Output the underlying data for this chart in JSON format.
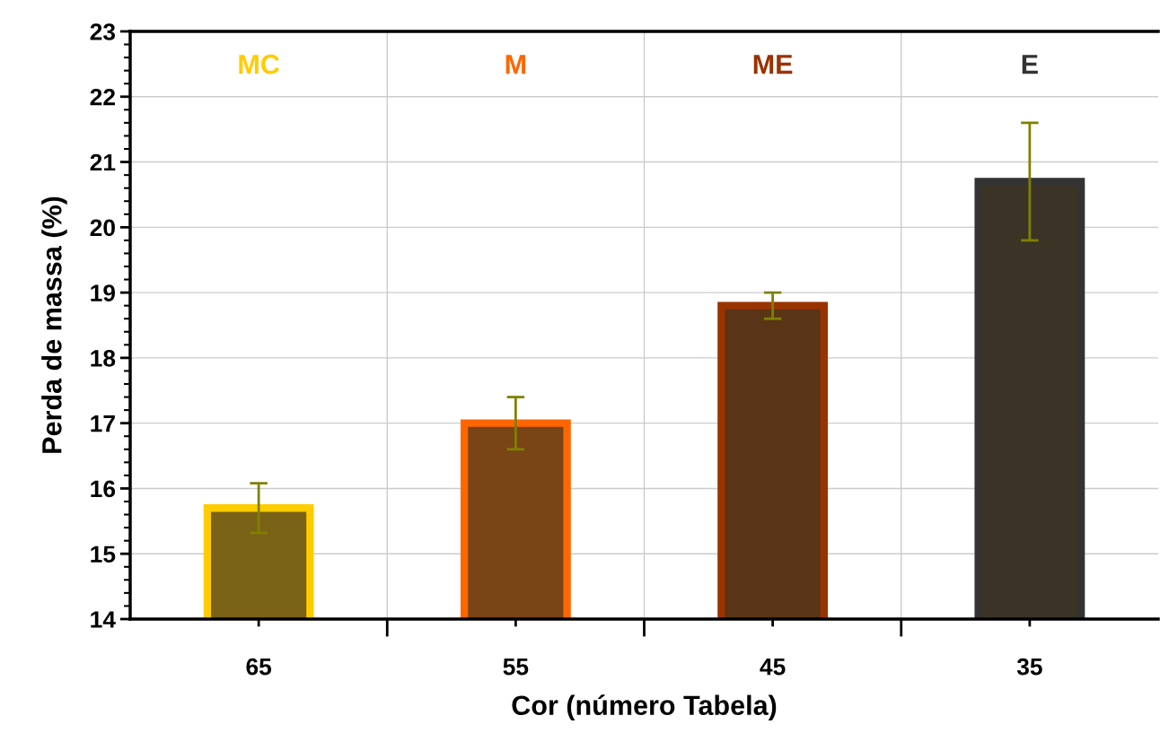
{
  "chart_data": {
    "type": "bar",
    "xlabel": "Cor (número Tabela)",
    "ylabel": "Perda de massa (%)",
    "categories": [
      "65",
      "55",
      "45",
      "35"
    ],
    "values": [
      15.7,
      17.0,
      18.8,
      20.7
    ],
    "errors": [
      0.38,
      0.4,
      0.2,
      0.9
    ],
    "colors": [
      "#ffcc00",
      "#ff6600",
      "#993300",
      "#333333"
    ],
    "ylim": [
      14,
      23
    ],
    "yticks": [
      14,
      15,
      16,
      17,
      18,
      19,
      20,
      21,
      22,
      23
    ],
    "grid": true,
    "annotations": [
      "MC",
      "M",
      "ME",
      "E"
    ]
  }
}
